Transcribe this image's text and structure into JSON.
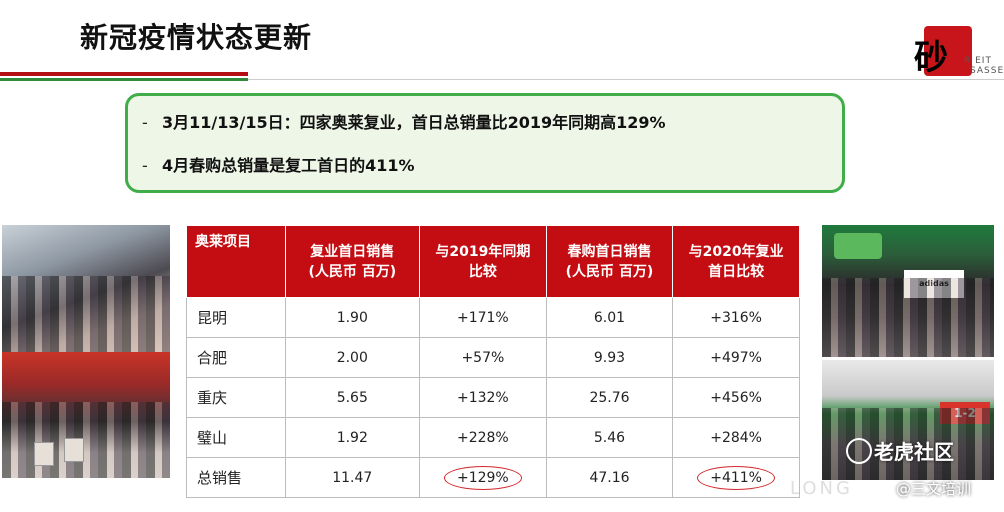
{
  "title": "新冠疫情状态更新",
  "logo": {
    "glyph": "砂",
    "line1": "R EIT",
    "line2": "SASSE"
  },
  "callout": {
    "dash": "-",
    "lines": [
      "3月11/13/15日：四家奥莱复业，首日总销量比2019年同期高129%",
      "4月春购总销量是复工首日的411%"
    ]
  },
  "table": {
    "headers": [
      "奥莱项目",
      "复业首日销售\n(人民币 百万)",
      "与2019年同期\n比较",
      "春购首日销售\n(人民币 百万)",
      "与2020年复业\n首日比较"
    ],
    "rows": [
      [
        "昆明",
        "1.90",
        "+171%",
        "6.01",
        "+316%"
      ],
      [
        "合肥",
        "2.00",
        "+57%",
        "9.93",
        "+497%"
      ],
      [
        "重庆",
        "5.65",
        "+132%",
        "25.76",
        "+456%"
      ],
      [
        "璧山",
        "1.92",
        "+228%",
        "5.46",
        "+284%"
      ],
      [
        "总销售",
        "11.47",
        "+129%",
        "47.16",
        "+411%"
      ]
    ]
  },
  "photos": {
    "right_top_sign": "adidas",
    "right_bottom_sign": "1-2"
  },
  "watermark": {
    "main": "老虎社区",
    "sub": "@三文培训",
    "faint": "LONG"
  },
  "colors": {
    "header_red": "#c30d12",
    "callout_border": "#3fae49",
    "circle_red": "#d4262b"
  }
}
